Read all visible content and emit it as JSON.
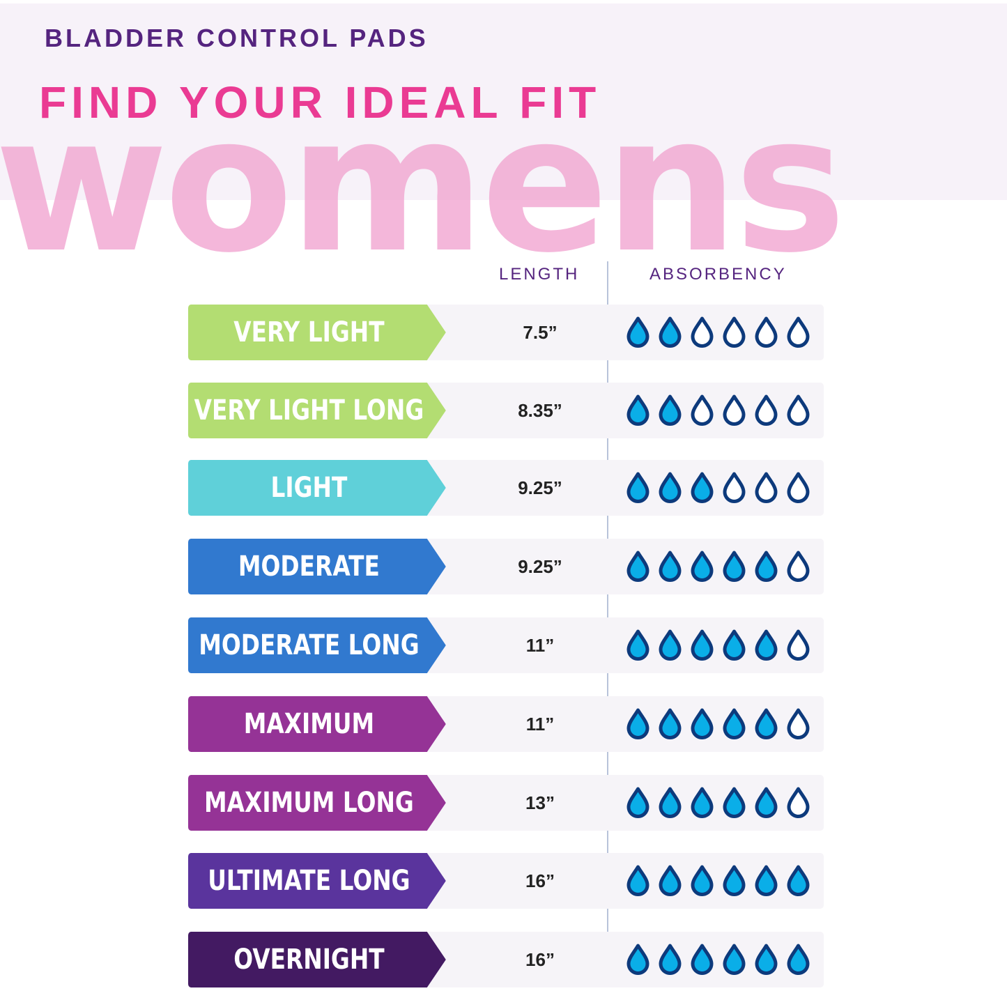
{
  "header": {
    "subtitle": "BLADDER CONTROL PADS",
    "title": "FIND YOUR IDEAL FIT",
    "watermark": "womens"
  },
  "columns": {
    "length": "LENGTH",
    "absorbency": "ABSORBENCY"
  },
  "drop_colors": {
    "fill": "#0aaee8",
    "outline": "#0d3a7c"
  },
  "drops_total": 6,
  "rows": [
    {
      "label": "VERY LIGHT",
      "length": "7.5”",
      "absorbency": 2,
      "color": "#b3dd72"
    },
    {
      "label": "VERY LIGHT LONG",
      "length": "8.35”",
      "absorbency": 2,
      "color": "#b3dd72"
    },
    {
      "label": "LIGHT",
      "length": "9.25”",
      "absorbency": 3,
      "color": "#5fd0d9"
    },
    {
      "label": "MODERATE",
      "length": "9.25”",
      "absorbency": 5,
      "color": "#3179cf"
    },
    {
      "label": "MODERATE LONG",
      "length": "11”",
      "absorbency": 5,
      "color": "#3179cf"
    },
    {
      "label": "MAXIMUM",
      "length": "11”",
      "absorbency": 5,
      "color": "#953396"
    },
    {
      "label": "MAXIMUM LONG",
      "length": "13”",
      "absorbency": 5,
      "color": "#953396"
    },
    {
      "label": "ULTIMATE LONG",
      "length": "16”",
      "absorbency": 6,
      "color": "#5a349d"
    },
    {
      "label": "OVERNIGHT",
      "length": "16”",
      "absorbency": 6,
      "color": "#431a62"
    }
  ]
}
